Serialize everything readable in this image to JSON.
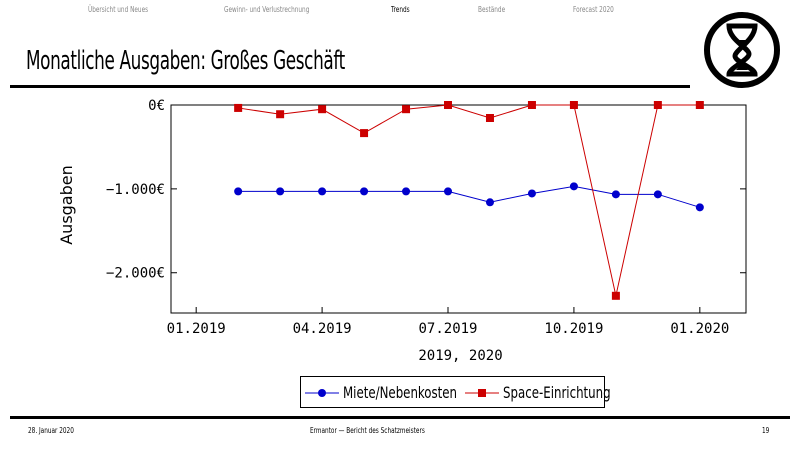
{
  "nav": {
    "items": [
      {
        "label": "Übersicht und Neues",
        "active": false
      },
      {
        "label": "Gewinn- und Verlustrechnung",
        "active": false
      },
      {
        "label": "Trends",
        "active": true
      },
      {
        "label": "Bestände",
        "active": false
      },
      {
        "label": "Forecast 2020",
        "active": false
      }
    ]
  },
  "title": "Monatliche Ausgaben: Großes Geschäft",
  "logo": {
    "icon": "hourglass-in-circle-icon"
  },
  "chart_data": {
    "type": "line",
    "xlabel": "2019, 2020",
    "ylabel": "Ausgaben",
    "x": [
      "02.2019",
      "03.2019",
      "04.2019",
      "05.2019",
      "06.2019",
      "07.2019",
      "08.2019",
      "09.2019",
      "10.2019",
      "11.2019",
      "12.2019",
      "01.2020"
    ],
    "xticks": [
      "01.2019",
      "04.2019",
      "07.2019",
      "10.2019",
      "01.2020"
    ],
    "yticks": [
      {
        "value": 0,
        "label": "0€"
      },
      {
        "value": -1000,
        "label": "−1.000€"
      },
      {
        "value": -2000,
        "label": "−2.000€"
      }
    ],
    "ylim": [
      -2480,
      0
    ],
    "xlim": [
      "12.2018",
      "03.2020"
    ],
    "grid": false,
    "legend_position": "bottom",
    "series": [
      {
        "name": "Miete/Nebenkosten",
        "color": "#0000cc",
        "marker": "circle",
        "values": [
          -1030,
          -1030,
          -1030,
          -1030,
          -1030,
          -1030,
          -1160,
          -1055,
          -970,
          -1065,
          -1065,
          -1220
        ]
      },
      {
        "name": "Space-Einrichtung",
        "color": "#cc0000",
        "marker": "square",
        "values": [
          -35,
          -110,
          -50,
          -335,
          -50,
          0,
          -155,
          0,
          0,
          -2275,
          0,
          0
        ]
      }
    ]
  },
  "footer": {
    "date": "28. Januar 2020",
    "center": "Ermantor — Bericht des Schatzmeisters",
    "page": "19"
  }
}
